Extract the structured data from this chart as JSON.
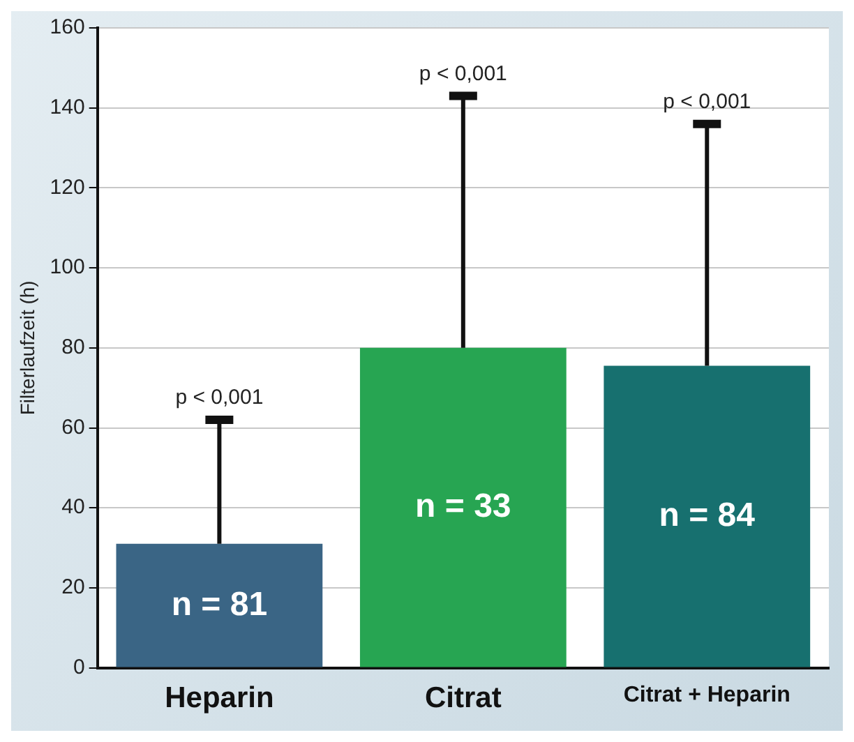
{
  "chart_data": {
    "type": "bar",
    "ylabel": "Filterlaufzeit (h)",
    "categories": [
      "Heparin",
      "Citrat",
      "Citrat + Heparin"
    ],
    "values": [
      31,
      80,
      75.5
    ],
    "colors": [
      "#3a6585",
      "#27a552",
      "#17706f"
    ],
    "errors": [
      [
        31,
        62
      ],
      [
        80,
        143
      ],
      [
        75.5,
        136
      ]
    ],
    "ylim": [
      0,
      160
    ],
    "yticks": [
      0,
      20,
      40,
      60,
      80,
      100,
      120,
      140,
      160
    ],
    "grid": "y",
    "annotations": [
      "n = 81",
      "n = 33",
      "n = 84",
      {
        "text": "p < 0,001",
        "x": "Heparin",
        "y": 62
      },
      {
        "text": "p < 0,001",
        "x": "Citrat",
        "y": 143
      },
      {
        "text": "p < 0,001",
        "x": "Citrat + Heparin",
        "y": 136
      }
    ]
  }
}
